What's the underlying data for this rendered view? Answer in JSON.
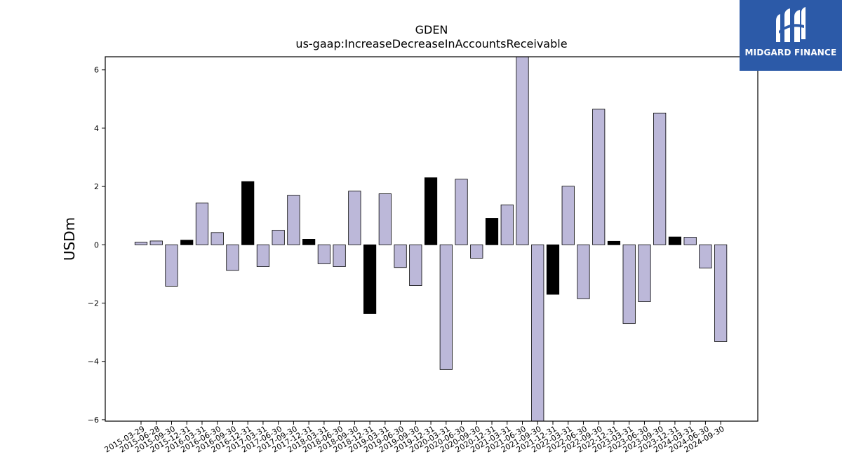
{
  "chart_data": {
    "type": "bar",
    "title": "GDEN",
    "subtitle": "us-gaap:IncreaseDecreaseInAccountsReceivable",
    "xlabel": "",
    "ylabel": "USDm",
    "ylim": [
      -6.05,
      6.45
    ],
    "yticks": [
      -6,
      -4,
      -2,
      0,
      2,
      4,
      6
    ],
    "colors": {
      "default": "#bcb8d9",
      "highlight": "#000000",
      "edge": "#000000"
    },
    "categories": [
      "2015-03-29",
      "2015-06-28",
      "2015-09-30",
      "2015-12-31",
      "2016-03-31",
      "2016-06-30",
      "2016-09-30",
      "2016-12-31",
      "2017-03-31",
      "2017-06-30",
      "2017-09-30",
      "2017-12-31",
      "2018-03-31",
      "2018-06-30",
      "2018-09-30",
      "2018-12-31",
      "2019-03-31",
      "2019-06-30",
      "2019-09-30",
      "2019-12-31",
      "2020-03-31",
      "2020-06-30",
      "2020-09-30",
      "2020-12-31",
      "2021-03-31",
      "2021-06-30",
      "2021-09-30",
      "2021-12-31",
      "2022-03-31",
      "2022-06-30",
      "2022-09-30",
      "2022-12-31",
      "2023-03-31",
      "2023-06-30",
      "2023-09-30",
      "2023-12-31",
      "2024-03-31",
      "2024-06-30",
      "2024-09-30"
    ],
    "values": [
      0.09,
      0.13,
      -1.42,
      0.16,
      1.43,
      0.42,
      -0.88,
      2.17,
      -0.75,
      0.5,
      1.7,
      0.19,
      -0.65,
      -0.75,
      1.84,
      -2.36,
      1.75,
      -0.78,
      -1.4,
      2.3,
      -4.28,
      2.25,
      -0.46,
      0.91,
      1.37,
      6.45,
      -6.05,
      -1.7,
      2.01,
      -1.85,
      4.65,
      0.12,
      -2.7,
      -1.95,
      4.52,
      0.27,
      0.26,
      -0.8,
      -3.32
    ],
    "highlight": [
      false,
      false,
      false,
      true,
      false,
      false,
      false,
      true,
      false,
      false,
      false,
      true,
      false,
      false,
      false,
      true,
      false,
      false,
      false,
      true,
      false,
      false,
      false,
      true,
      false,
      false,
      false,
      true,
      false,
      false,
      false,
      true,
      false,
      false,
      false,
      true,
      false,
      false,
      false
    ]
  },
  "logo": {
    "text": "MIDGARD FINANCE"
  }
}
